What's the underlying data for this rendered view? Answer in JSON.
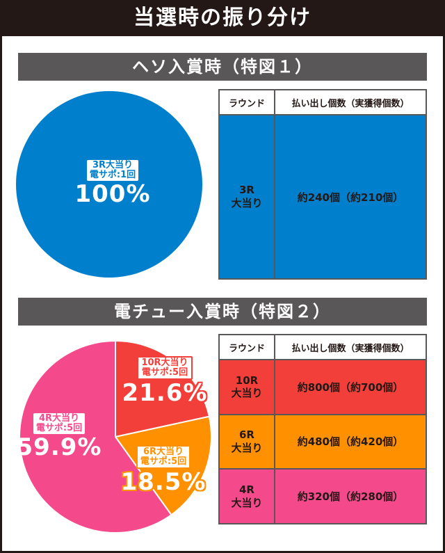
{
  "main_title": "当選時の振り分け",
  "colors": {
    "title_bg": "#231815",
    "section_bg": "#595757",
    "blue": "#0080cc",
    "red": "#f23f3a",
    "orange": "#ff9000",
    "pink": "#f44a8c"
  },
  "sections": [
    {
      "title": "ヘソ入賞時（特図１）",
      "table": {
        "headers": [
          "ラウンド",
          "払い出し個数（実獲得個数）"
        ],
        "rows": [
          {
            "round_line1": "3R",
            "round_line2": "大当り",
            "payout": "約240個（約210個）"
          }
        ]
      }
    },
    {
      "title": "電チュー入賞時（特図２）",
      "table": {
        "headers": [
          "ラウンド",
          "払い出し個数（実獲得個数）"
        ],
        "rows": [
          {
            "round_line1": "10R",
            "round_line2": "大当り",
            "payout": "約800個（約700個）"
          },
          {
            "round_line1": "6R",
            "round_line2": "大当り",
            "payout": "約480個（約420個）"
          },
          {
            "round_line1": "4R",
            "round_line2": "大当り",
            "payout": "約320個（約280個）"
          }
        ]
      }
    }
  ],
  "chart_data": [
    {
      "type": "pie",
      "title": "ヘソ入賞時（特図１）",
      "slices": [
        {
          "label_line1": "3R大当り",
          "label_line2": "電サポ:1回",
          "value": 100,
          "value_text": "100%",
          "color": "#0080cc"
        }
      ]
    },
    {
      "type": "pie",
      "title": "電チュー入賞時（特図２）",
      "slices": [
        {
          "label_line1": "10R大当り",
          "label_line2": "電サポ:5回",
          "value": 21.6,
          "value_text": "21.6%",
          "color": "#f23f3a"
        },
        {
          "label_line1": "6R大当り",
          "label_line2": "電サポ:5回",
          "value": 18.5,
          "value_text": "18.5%",
          "color": "#ff9000"
        },
        {
          "label_line1": "4R大当り",
          "label_line2": "電サポ:5回",
          "value": 59.9,
          "value_text": "59.9%",
          "color": "#f44a8c"
        }
      ]
    }
  ]
}
